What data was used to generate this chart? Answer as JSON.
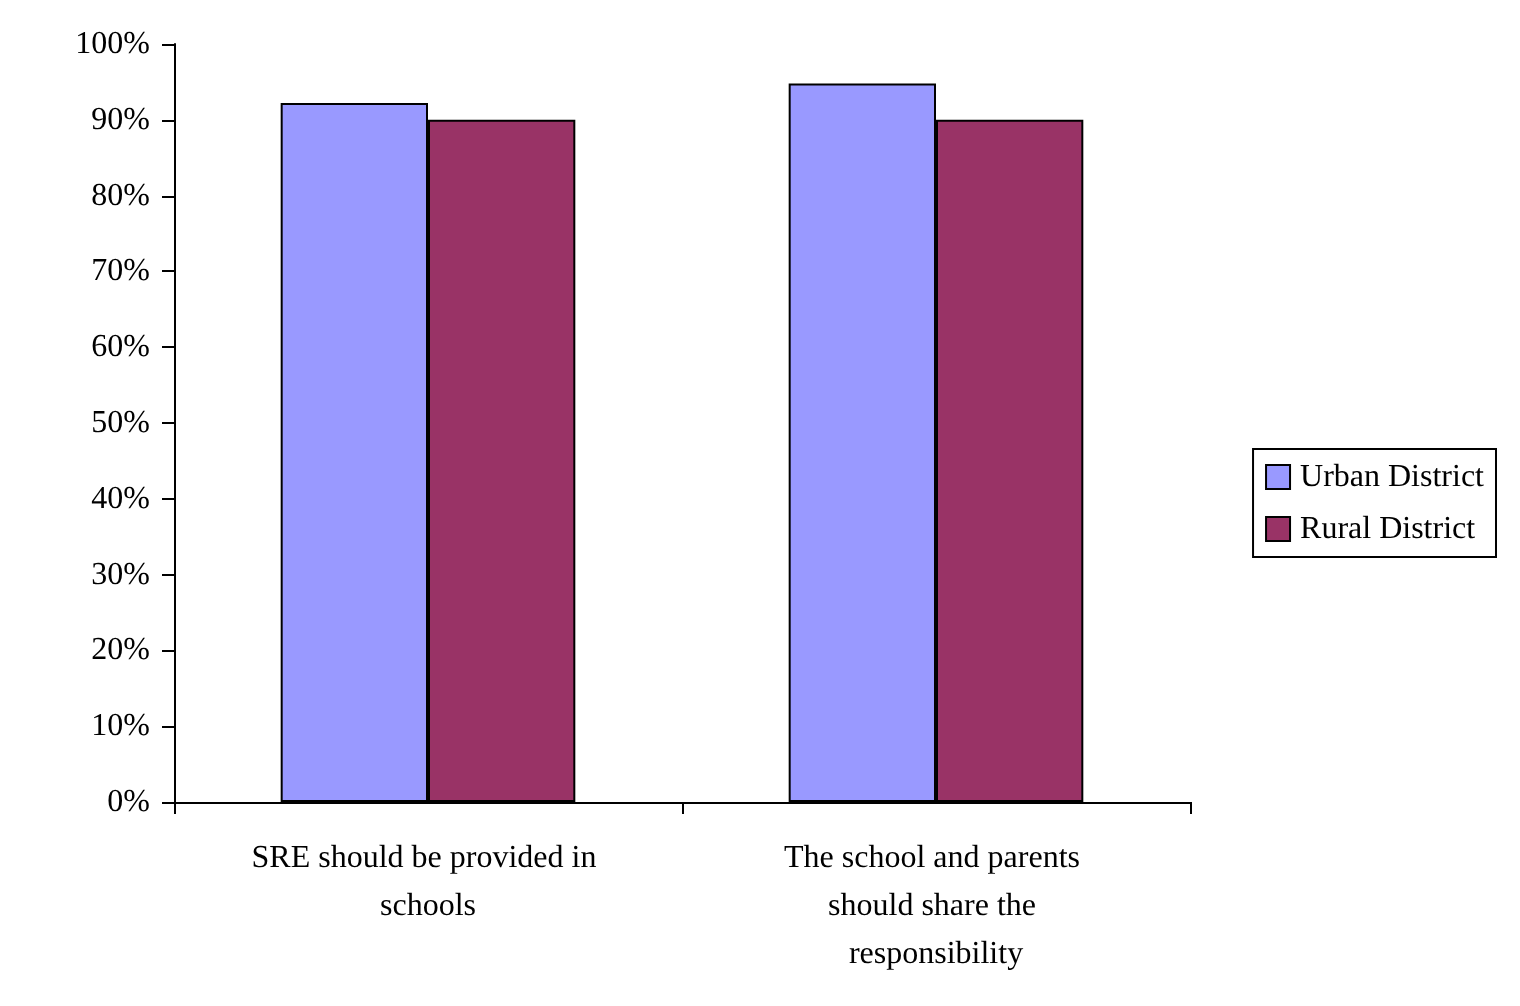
{
  "chart_data": {
    "type": "bar",
    "categories": [
      "SRE should be provided in schools",
      "The school and parents should share the responsibility"
    ],
    "series": [
      {
        "name": "Urban District",
        "color": "#9999ff",
        "values": [
          92.2,
          94.8
        ]
      },
      {
        "name": "Rural District",
        "color": "#993366",
        "values": [
          90,
          90
        ]
      }
    ],
    "ylim": [
      0,
      100
    ],
    "yticks": [
      {
        "value": 0,
        "label": "0%"
      },
      {
        "value": 10,
        "label": "10%"
      },
      {
        "value": 20,
        "label": "20%"
      },
      {
        "value": 30,
        "label": "30%"
      },
      {
        "value": 40,
        "label": "40%"
      },
      {
        "value": 50,
        "label": "50%"
      },
      {
        "value": 60,
        "label": "60%"
      },
      {
        "value": 70,
        "label": "70%"
      },
      {
        "value": 80,
        "label": "80%"
      },
      {
        "value": 90,
        "label": "90%"
      },
      {
        "value": 100,
        "label": "100%"
      }
    ],
    "grid": false,
    "legend": "right"
  }
}
